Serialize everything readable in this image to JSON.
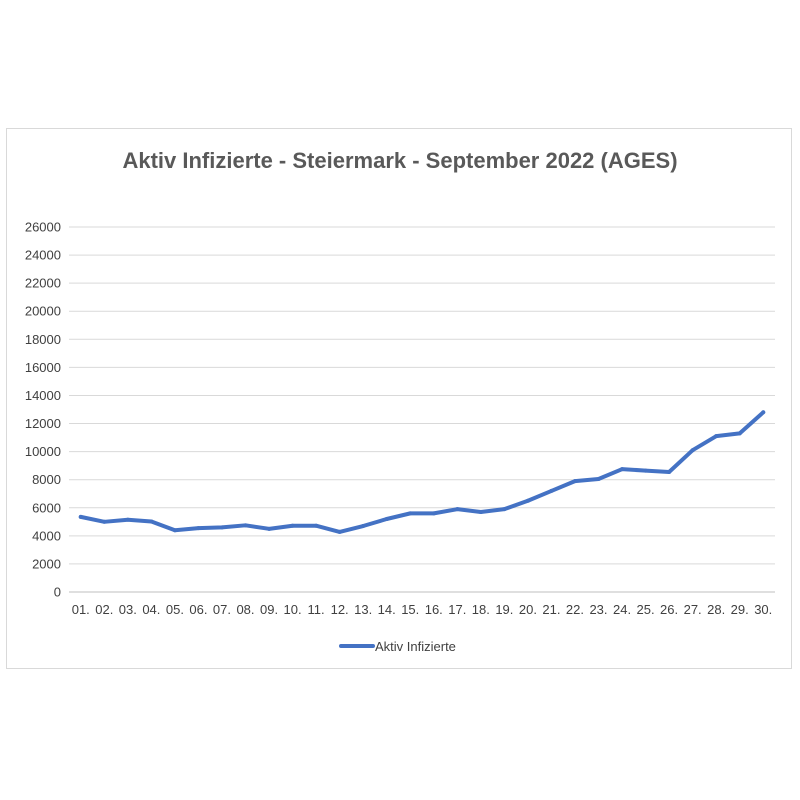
{
  "chart_data": {
    "type": "line",
    "title": "Aktiv Infizierte - Steiermark - September 2022 (AGES)",
    "xlabel": "",
    "ylabel": "",
    "ylim": [
      0,
      26000
    ],
    "yticks": [
      0,
      2000,
      4000,
      6000,
      8000,
      10000,
      12000,
      14000,
      16000,
      18000,
      20000,
      22000,
      24000,
      26000
    ],
    "categories": [
      "01.",
      "02.",
      "03.",
      "04.",
      "05.",
      "06.",
      "07.",
      "08.",
      "09.",
      "10.",
      "11.",
      "12.",
      "13.",
      "14.",
      "15.",
      "16.",
      "17.",
      "18.",
      "19.",
      "20.",
      "21.",
      "22.",
      "23.",
      "24.",
      "25.",
      "26.",
      "27.",
      "28.",
      "29.",
      "30."
    ],
    "series": [
      {
        "name": "Aktiv Infizierte",
        "color": "#4472c4",
        "values": [
          5350,
          5000,
          5150,
          5020,
          4400,
          4550,
          4600,
          4750,
          4500,
          4720,
          4720,
          4280,
          4700,
          5200,
          5600,
          5600,
          5900,
          5700,
          5900,
          6500,
          7200,
          7900,
          8050,
          8750,
          8650,
          8550,
          10100,
          11100,
          11300,
          12800
        ]
      }
    ],
    "grid": true,
    "legend_position": "bottom"
  }
}
